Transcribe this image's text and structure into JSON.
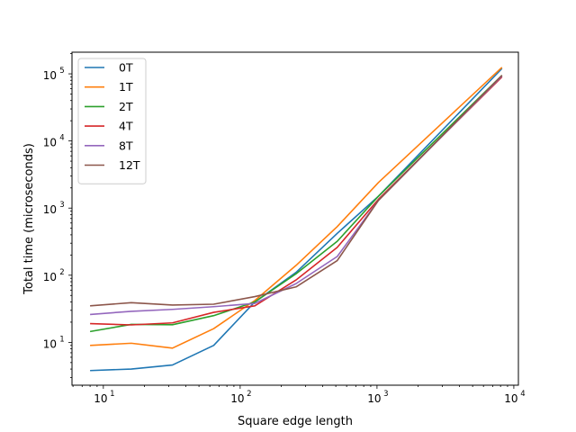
{
  "chart_data": {
    "type": "line",
    "title": "",
    "xlabel": "Square edge length",
    "ylabel": "Total time (microseconds)",
    "xscale": "log",
    "yscale": "log",
    "xlim": [
      5.9,
      10800
    ],
    "ylim": [
      2.3,
      210000
    ],
    "grid": false,
    "legend_position": "upper-left",
    "xticks": [
      {
        "value": 10,
        "label": "10",
        "exp": "1"
      },
      {
        "value": 100,
        "label": "10",
        "exp": "2"
      },
      {
        "value": 1000,
        "label": "10",
        "exp": "3"
      },
      {
        "value": 10000,
        "label": "10",
        "exp": "4"
      }
    ],
    "yticks": [
      {
        "value": 10,
        "label": "10",
        "exp": "1"
      },
      {
        "value": 100,
        "label": "10",
        "exp": "2"
      },
      {
        "value": 1000,
        "label": "10",
        "exp": "3"
      },
      {
        "value": 10000,
        "label": "10",
        "exp": "4"
      },
      {
        "value": 100000,
        "label": "10",
        "exp": "5"
      }
    ],
    "x": [
      8,
      16,
      32,
      64,
      128,
      256,
      512,
      1024,
      8192
    ],
    "series": [
      {
        "name": "0T",
        "color": "#1f77b4",
        "values": [
          3.8,
          4.0,
          4.6,
          9.0,
          40,
          110,
          420,
          1500,
          120000
        ]
      },
      {
        "name": "1T",
        "color": "#ff7f0e",
        "values": [
          9.0,
          9.7,
          8.2,
          16,
          42,
          140,
          530,
          2400,
          125000
        ]
      },
      {
        "name": "2T",
        "color": "#2ca02c",
        "values": [
          14.5,
          18.5,
          18.3,
          25,
          40,
          105,
          320,
          1500,
          95000
        ]
      },
      {
        "name": "4T",
        "color": "#d62728",
        "values": [
          19,
          18.2,
          19.5,
          28,
          35,
          85,
          260,
          1350,
          90000
        ]
      },
      {
        "name": "8T",
        "color": "#9467bd",
        "values": [
          26,
          29,
          31,
          34,
          38,
          75,
          190,
          1300,
          93000
        ]
      },
      {
        "name": "12T",
        "color": "#8c564b",
        "values": [
          35,
          39,
          36,
          37,
          48,
          67,
          165,
          1300,
          95000
        ]
      }
    ]
  }
}
